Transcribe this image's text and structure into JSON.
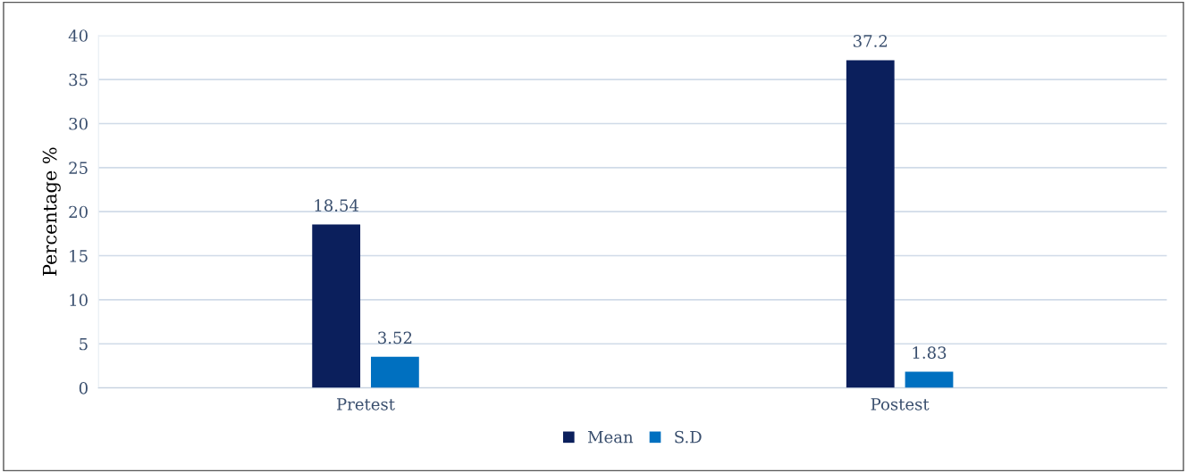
{
  "chart_data": {
    "type": "bar",
    "ylabel": "Percentage %",
    "categories": [
      "Pretest",
      "Postest"
    ],
    "series": [
      {
        "name": "Mean",
        "color": "#0b1f5c",
        "values": [
          18.54,
          37.2
        ]
      },
      {
        "name": "S.D",
        "color": "#0070c0",
        "values": [
          3.52,
          1.83
        ]
      }
    ],
    "ylim": [
      0,
      40
    ],
    "yticks": [
      0,
      5,
      10,
      15,
      20,
      25,
      30,
      35,
      40
    ],
    "grid": "y",
    "legend": "bottom",
    "data_labels": true
  }
}
